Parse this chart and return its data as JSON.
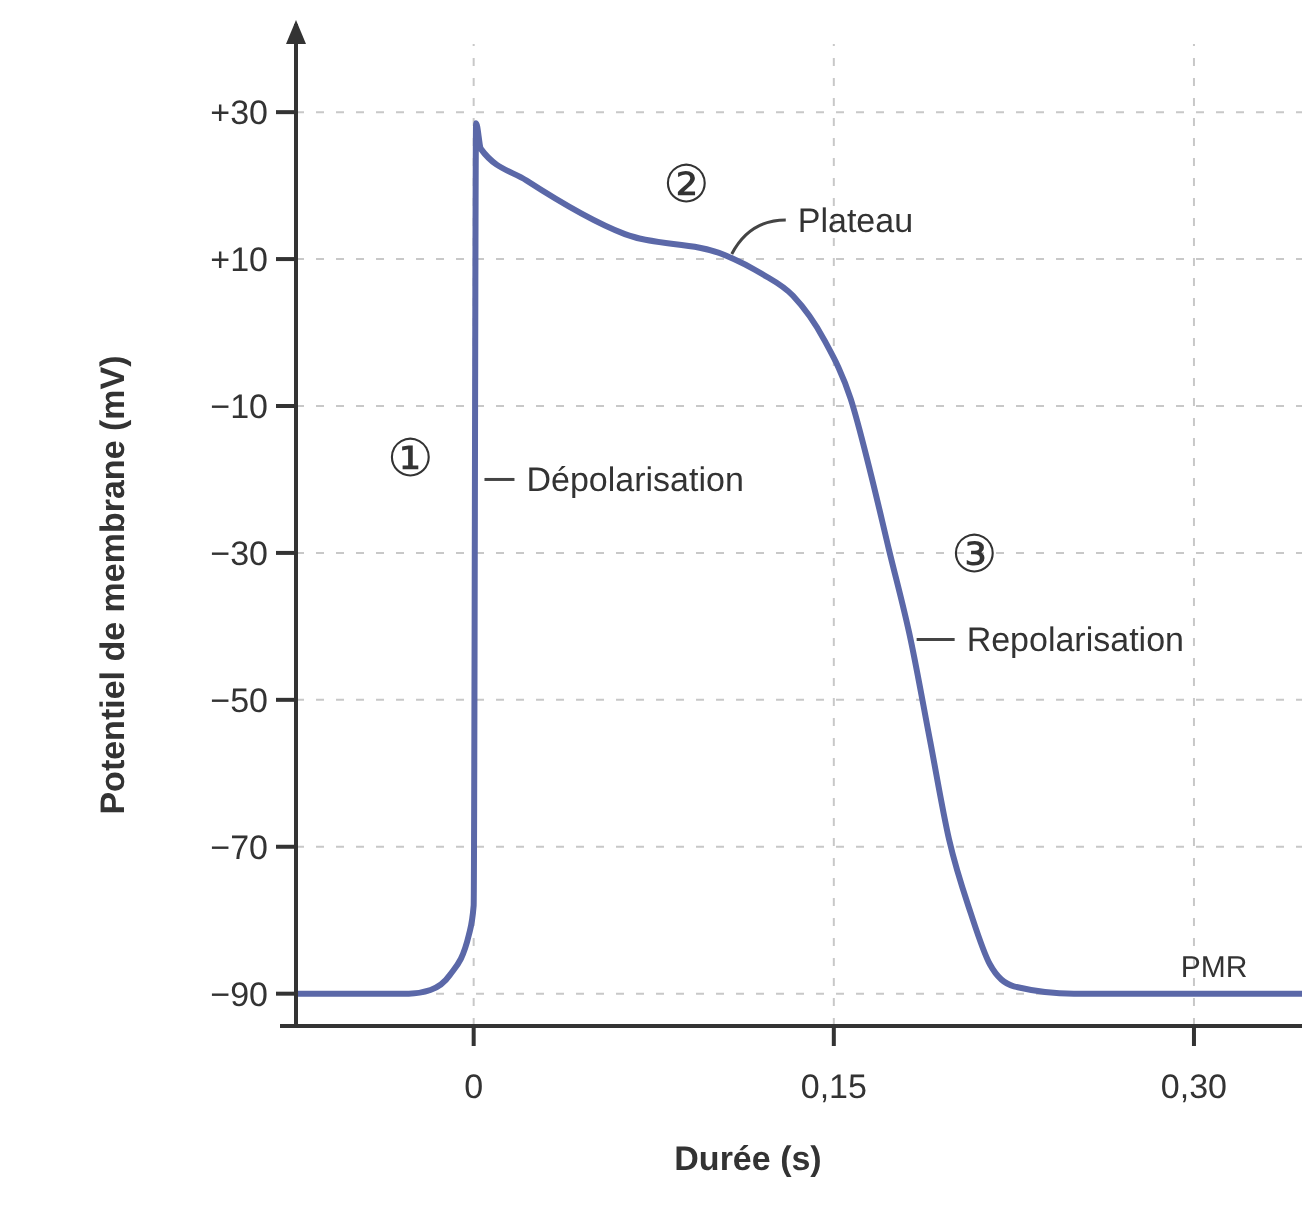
{
  "chart_data": {
    "type": "line",
    "xlabel": "Durée (s)",
    "ylabel": "Potentiel de membrane (mV)",
    "xlim": [
      -0.074,
      0.345
    ],
    "ylim": [
      -94.4,
      42
    ],
    "xticks": [
      {
        "value": 0,
        "label": "0"
      },
      {
        "value": 0.15,
        "label": "0,15"
      },
      {
        "value": 0.3,
        "label": "0,30"
      }
    ],
    "yticks": [
      {
        "value": 30,
        "label": "+30"
      },
      {
        "value": 10,
        "label": "+10"
      },
      {
        "value": -10,
        "label": "−10"
      },
      {
        "value": -30,
        "label": "−30"
      },
      {
        "value": -50,
        "label": "−50"
      },
      {
        "value": -70,
        "label": "−70"
      },
      {
        "value": -90,
        "label": "−90"
      }
    ],
    "grid": true,
    "marker": "none",
    "line_style": "solid",
    "series": [
      {
        "color": "#5b68a8",
        "x": [
          -0.073,
          -0.027,
          -0.018,
          -0.01,
          -0.002,
          0,
          0.001,
          0.003,
          0.022,
          0.063,
          0.105,
          0.12,
          0.133,
          0.146,
          0.157,
          0.165,
          0.173,
          0.182,
          0.19,
          0.198,
          0.207,
          0.215,
          0.225,
          0.25,
          0.345
        ],
        "values": [
          -90,
          -90,
          -89.5,
          -87.5,
          -82,
          -78,
          28.5,
          25,
          20.7,
          13.4,
          10.5,
          8,
          5,
          -1,
          -9,
          -18.7,
          -29.6,
          -41.8,
          -55.4,
          -69,
          -79,
          -86,
          -89,
          -90,
          -90
        ]
      }
    ],
    "annotations": [
      "①",
      {
        "text": "Dépolarisation",
        "x": 0.002,
        "y": -20
      },
      "②",
      {
        "text": "Plateau",
        "x": 0.105,
        "y": 10.7
      },
      "③",
      {
        "text": "Repolarisation",
        "x": 0.182,
        "y": -41.8
      },
      "PMR"
    ]
  }
}
